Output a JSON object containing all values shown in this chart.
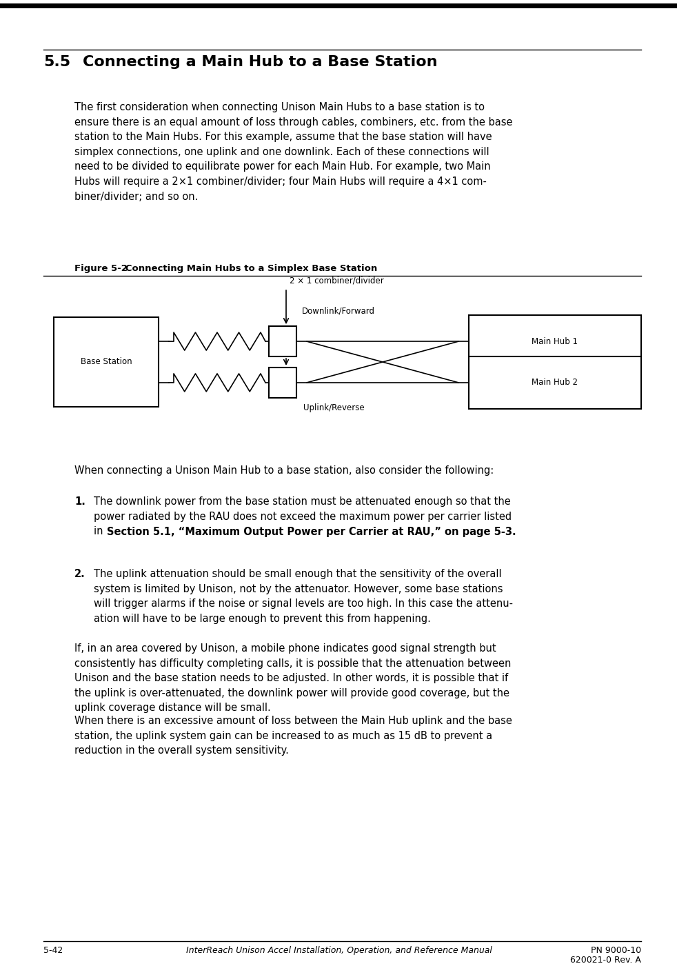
{
  "page_number": "5-42",
  "footer_center": "InterReach Unison Accel Installation, Operation, and Reference Manual",
  "footer_right1": "PN 9000-10",
  "footer_right2": "620021-0 Rev. A",
  "section_number": "5.5",
  "section_title": "Connecting a Main Hub to a Base Station",
  "body_text1": "The first consideration when connecting Unison Main Hubs to a base station is to\nensure there is an equal amount of loss through cables, combiners, etc. from the base\nstation to the Main Hubs. For this example, assume that the base station will have\nsimplex connections, one uplink and one downlink. Each of these connections will\nneed to be divided to equilibrate power for each Main Hub. For example, two Main\nHubs will require a 2×1 combiner/divider; four Main Hubs will require a 4×1 com-\nbiner/divider; and so on.",
  "figure_label": "Figure 5-2",
  "figure_title": "   Connecting Main Hubs to a Simplex Base Station",
  "after_figure_text": "When connecting a Unison Main Hub to a base station, also consider the following:",
  "item1_text_reg": "The downlink power from the base station must be attenuated enough so that the\npower radiated by the RAU does not exceed the maximum power per carrier listed\nin ",
  "item1_text_bold": "Section 5.1, “Maximum Output Power per Carrier at RAU,” on page 5-3",
  "item1_text_end": ".",
  "item2_text": "The uplink attenuation should be small enough that the sensitivity of the overall\nsystem is limited by Unison, not by the attenuator. However, some base stations\nwill trigger alarms if the noise or signal levels are too high. In this case the attenu-\nation will have to be large enough to prevent this from happening.",
  "para3": "If, in an area covered by Unison, a mobile phone indicates good signal strength but\nconsistently has difficulty completing calls, it is possible that the attenuation between\nUnison and the base station needs to be adjusted. In other words, it is possible that if\nthe uplink is over-attenuated, the downlink power will provide good coverage, but the\nuplink coverage distance will be small.",
  "para4": "When there is an excessive amount of loss between the Main Hub uplink and the base\nstation, the uplink system gain can be increased to as much as 15 dB to prevent a\nreduction in the overall system sensitivity.",
  "bg_color": "#ffffff",
  "text_color": "#000000",
  "font_size_body": 10.5,
  "font_size_section": 16,
  "font_size_footer": 9,
  "font_size_fig_label": 9.5,
  "font_size_diagram": 8.5
}
